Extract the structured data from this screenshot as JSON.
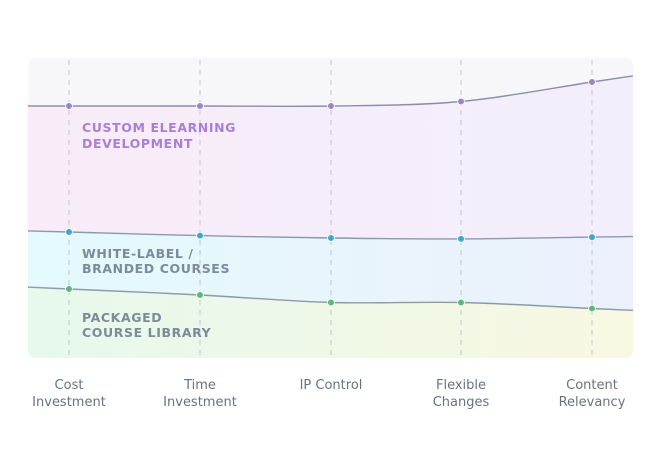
{
  "chart_data": {
    "type": "area",
    "categories": [
      [
        "Cost",
        "Investment"
      ],
      [
        "Time",
        "Investment"
      ],
      [
        "IP Control"
      ],
      [
        "Flexible",
        "Changes"
      ],
      [
        "Content",
        "Relevancy"
      ]
    ],
    "ylim": [
      0,
      100
    ],
    "grid": "vertical-dashed",
    "series": [
      {
        "name": [
          "CUSTOM ELEARNING",
          "DEVELOPMENT"
        ],
        "values": [
          84,
          84,
          84,
          85.5,
          92
        ],
        "color": "#a87fd6",
        "dot_color": "#9a86c7",
        "fill": [
          "#f9ecf8",
          "#f3eefc"
        ]
      },
      {
        "name": [
          "WHITE-LABEL /",
          "BRANDED COURSES"
        ],
        "values": [
          42,
          40.8,
          40,
          39.7,
          40.3
        ],
        "color": "#8a9aaa",
        "dot_color": "#3ea7d0",
        "fill": [
          "#e4fafc",
          "#ecf0fc"
        ]
      },
      {
        "name": [
          "PACKAGED",
          "COURSE LIBRARY"
        ],
        "values": [
          23,
          21,
          18.5,
          18.5,
          16.5
        ],
        "color": "#8a9aaa",
        "dot_color": "#5cb87a",
        "fill": [
          "#e6f9ec",
          "#f8f7e2"
        ]
      }
    ]
  }
}
